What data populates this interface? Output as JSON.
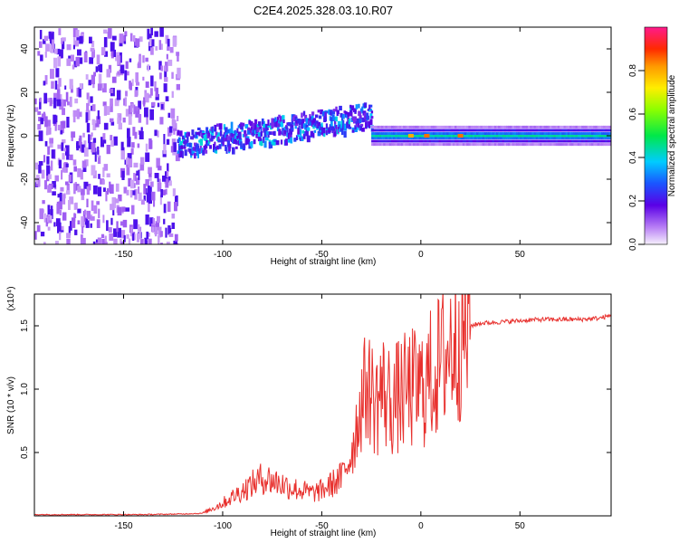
{
  "title": "C2E4.2025.328.03.10.R07",
  "chart_data": [
    {
      "type": "heatmap",
      "xlabel": "Height of straight line (km)",
      "ylabel": "Frequency (Hz)",
      "xlim": [
        -195,
        96
      ],
      "ylim": [
        -50,
        50
      ],
      "xticks": [
        -150,
        -100,
        -50,
        0,
        50
      ],
      "yticks": [
        -40,
        -20,
        0,
        20,
        40
      ],
      "colorbar": {
        "label": "Normalized spectral amplitude",
        "range": [
          0,
          1
        ],
        "ticks": [
          "0.0",
          "0.2",
          "0.4",
          "0.6",
          "0.8"
        ]
      },
      "regions": [
        {
          "x_range": [
            -195,
            -123
          ],
          "frequency_range": [
            -50,
            50
          ],
          "description": "scattered low-amplitude noise",
          "level": 0.15
        },
        {
          "x_range": [
            -123,
            -25
          ],
          "frequency_center_start": -3,
          "frequency_center_end": 10,
          "level": 0.35
        },
        {
          "x_range": [
            -25,
            96
          ],
          "frequency_center": 0,
          "level": 0.45
        }
      ],
      "hotspots": [
        {
          "x": -5,
          "y": 0,
          "level": 0.8
        },
        {
          "x": 3,
          "y": 0,
          "level": 0.85
        },
        {
          "x": 20,
          "y": 0,
          "level": 0.85
        }
      ]
    },
    {
      "type": "line",
      "xlabel": "Height of straight line (km)",
      "ylabel": "SNR (10 * v/v)",
      "y_scale_label": "(x10⁴)",
      "xlim": [
        -195,
        96
      ],
      "ylim": [
        0,
        1.75
      ],
      "xticks": [
        -150,
        -100,
        -50,
        0,
        50
      ],
      "yticks": [
        0.5,
        1.0,
        1.5
      ],
      "ytick_labels": [
        "0.5",
        "1.0",
        "1.5"
      ],
      "series": [
        {
          "name": "SNR",
          "color": "#e8312e",
          "x": [
            -195,
            -180,
            -160,
            -140,
            -120,
            -110,
            -105,
            -100,
            -95,
            -90,
            -85,
            -80,
            -75,
            -70,
            -65,
            -60,
            -55,
            -50,
            -45,
            -40,
            -35,
            -30,
            -27,
            -25,
            -22,
            -20,
            -15,
            -10,
            -5,
            0,
            5,
            10,
            15,
            20,
            25,
            30,
            40,
            50,
            60,
            70,
            80,
            90,
            96
          ],
          "values": [
            0.01,
            0.01,
            0.01,
            0.01,
            0.015,
            0.02,
            0.06,
            0.1,
            0.15,
            0.2,
            0.25,
            0.3,
            0.28,
            0.25,
            0.22,
            0.2,
            0.18,
            0.2,
            0.25,
            0.3,
            0.5,
            0.9,
            1.05,
            0.95,
            0.9,
            1.0,
            0.9,
            0.95,
            1.0,
            1.0,
            1.1,
            1.2,
            1.35,
            1.45,
            1.5,
            1.52,
            1.53,
            1.54,
            1.55,
            1.55,
            1.55,
            1.56,
            1.58
          ]
        }
      ]
    }
  ]
}
